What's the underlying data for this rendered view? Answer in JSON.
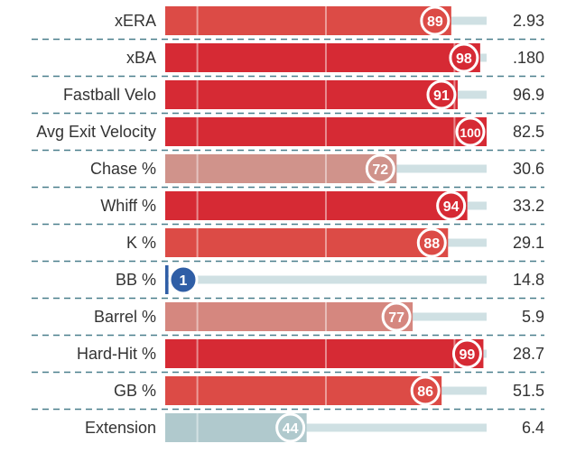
{
  "chart_data": {
    "type": "bar",
    "orientation": "horizontal",
    "value_label": "percentile",
    "xlim": [
      0,
      100
    ],
    "gridlines_at": [
      10,
      50,
      90
    ],
    "categories": [
      "xERA",
      "xBA",
      "Fastball Velo",
      "Avg Exit Velocity",
      "Chase %",
      "Whiff %",
      "K %",
      "BB %",
      "Barrel %",
      "Hard-Hit %",
      "GB %",
      "Extension"
    ],
    "percentiles": [
      89,
      98,
      91,
      100,
      72,
      94,
      88,
      1,
      77,
      99,
      86,
      44
    ],
    "stat_values": [
      "2.93",
      ".180",
      "96.9",
      "82.5",
      "30.6",
      "33.2",
      "29.1",
      "14.8",
      "5.9",
      "28.7",
      "51.5",
      "6.4"
    ],
    "colors": {
      "elite": "#d62a34",
      "great": "#dc4b46",
      "above": "#d5877f",
      "mid": "#d0938b",
      "below": "#b0c9cd",
      "poor": "#2f5ea6",
      "track": "#cfe0e3",
      "divider": "#4a7f8c",
      "label": "#333333"
    }
  }
}
